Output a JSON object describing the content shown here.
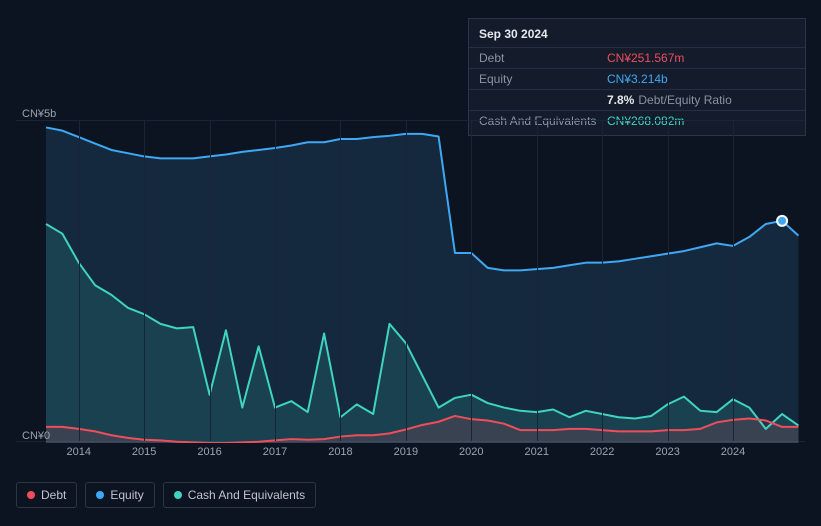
{
  "tooltip": {
    "date": "Sep 30 2024",
    "rows": [
      {
        "label": "Debt",
        "value": "CN¥251.567m",
        "color": "#ef4d5c"
      },
      {
        "label": "Equity",
        "value": "CN¥3.214b",
        "color": "#3fa8f4"
      },
      {
        "label": "",
        "pct": "7.8%",
        "suffix": "Debt/Equity Ratio",
        "color": ""
      },
      {
        "label": "Cash And Equivalents",
        "value": "CN¥268.082m",
        "color": "#3fd4c1"
      }
    ]
  },
  "chart": {
    "type": "area",
    "background_color": "#0d1421",
    "grid_color": "#1a2438",
    "axis_font_size": 11,
    "axis_color": "#9ba3b3",
    "ylim": [
      0,
      5
    ],
    "ylabels": [
      {
        "text": "CN¥5b",
        "value": 5
      },
      {
        "text": "CN¥0",
        "value": 0
      }
    ],
    "xlim": [
      2013.5,
      2025.1
    ],
    "xticks": [
      2014,
      2015,
      2016,
      2017,
      2018,
      2019,
      2020,
      2021,
      2022,
      2023,
      2024
    ],
    "x_step": 0.25,
    "series": [
      {
        "name": "Debt",
        "label": "Debt",
        "color": "#ef4d5c",
        "fill": "rgba(239,77,92,0.14)",
        "line_width": 2,
        "values": [
          0.25,
          0.25,
          0.22,
          0.18,
          0.12,
          0.08,
          0.05,
          0.04,
          0.02,
          0.01,
          0.0,
          0.0,
          0.01,
          0.02,
          0.04,
          0.06,
          0.05,
          0.06,
          0.1,
          0.12,
          0.12,
          0.15,
          0.21,
          0.28,
          0.33,
          0.42,
          0.37,
          0.35,
          0.3,
          0.2,
          0.2,
          0.2,
          0.22,
          0.22,
          0.2,
          0.18,
          0.18,
          0.18,
          0.2,
          0.2,
          0.22,
          0.32,
          0.36,
          0.38,
          0.35,
          0.25,
          0.25
        ]
      },
      {
        "name": "Equity",
        "label": "Equity",
        "color": "#3fa8f4",
        "fill": "rgba(63,168,244,0.14)",
        "line_width": 2,
        "values": [
          4.9,
          4.85,
          4.75,
          4.65,
          4.55,
          4.5,
          4.45,
          4.42,
          4.42,
          4.42,
          4.45,
          4.48,
          4.52,
          4.55,
          4.58,
          4.62,
          4.67,
          4.67,
          4.72,
          4.72,
          4.75,
          4.77,
          4.8,
          4.8,
          4.76,
          2.95,
          2.95,
          2.72,
          2.68,
          2.68,
          2.7,
          2.72,
          2.76,
          2.8,
          2.8,
          2.82,
          2.86,
          2.9,
          2.94,
          2.98,
          3.04,
          3.1,
          3.06,
          3.2,
          3.4,
          3.45,
          3.22
        ]
      },
      {
        "name": "CashAndEquivalents",
        "label": "Cash And Equivalents",
        "color": "#3fd4c1",
        "fill": "rgba(63,212,193,0.14)",
        "line_width": 2,
        "values": [
          3.4,
          3.25,
          2.8,
          2.45,
          2.3,
          2.1,
          2.0,
          1.85,
          1.78,
          1.8,
          0.75,
          1.75,
          0.55,
          1.5,
          0.55,
          0.65,
          0.48,
          1.7,
          0.4,
          0.6,
          0.45,
          1.85,
          1.55,
          1.05,
          0.55,
          0.7,
          0.75,
          0.62,
          0.55,
          0.5,
          0.48,
          0.52,
          0.4,
          0.5,
          0.45,
          0.4,
          0.38,
          0.42,
          0.6,
          0.72,
          0.5,
          0.48,
          0.68,
          0.55,
          0.22,
          0.45,
          0.27
        ]
      }
    ],
    "marker": {
      "x": 2024.75,
      "color": "#3fa8f4",
      "border": "#ffffff",
      "radius": 5
    }
  },
  "legend": {
    "border_color": "#2a3548",
    "font_size": 12,
    "items": [
      {
        "key": "Debt",
        "label": "Debt",
        "dot": "#ef4d5c"
      },
      {
        "key": "Equity",
        "label": "Equity",
        "dot": "#3fa8f4"
      },
      {
        "key": "CashAndEquivalents",
        "label": "Cash And Equivalents",
        "dot": "#3fd4c1"
      }
    ]
  }
}
